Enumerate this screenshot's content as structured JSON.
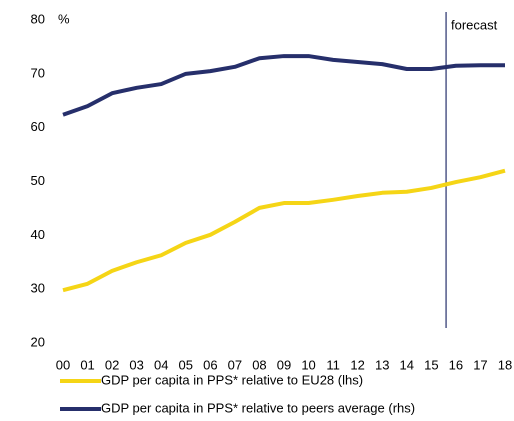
{
  "chart_data": {
    "type": "line",
    "y_label": "%",
    "annotation": "forecast",
    "categories": [
      "00",
      "01",
      "02",
      "03",
      "04",
      "05",
      "06",
      "07",
      "08",
      "09",
      "10",
      "11",
      "12",
      "13",
      "14",
      "15",
      "16",
      "17",
      "18"
    ],
    "series": [
      {
        "name": "GDP per capita in PPS* relative to EU28 (lhs)",
        "color": "#f5d516",
        "values": [
          29.8,
          31.0,
          33.4,
          35.0,
          36.3,
          38.6,
          40.1,
          42.5,
          45.1,
          46.0,
          46.0,
          46.6,
          47.3,
          47.9,
          48.1,
          48.8,
          49.9,
          50.8,
          52.0
        ]
      },
      {
        "name": "GDP per capita in PPS* relative to peers average (rhs)",
        "color": "#262f6b",
        "values": [
          62.4,
          64.0,
          66.4,
          67.4,
          68.1,
          70.0,
          70.5,
          71.3,
          72.9,
          73.3,
          73.3,
          72.6,
          72.2,
          71.8,
          70.9,
          70.9,
          71.5,
          71.6,
          71.6
        ]
      }
    ],
    "ylim": [
      20,
      80
    ],
    "yticks": [
      20,
      30,
      40,
      50,
      60,
      70,
      80
    ],
    "grid": false
  }
}
